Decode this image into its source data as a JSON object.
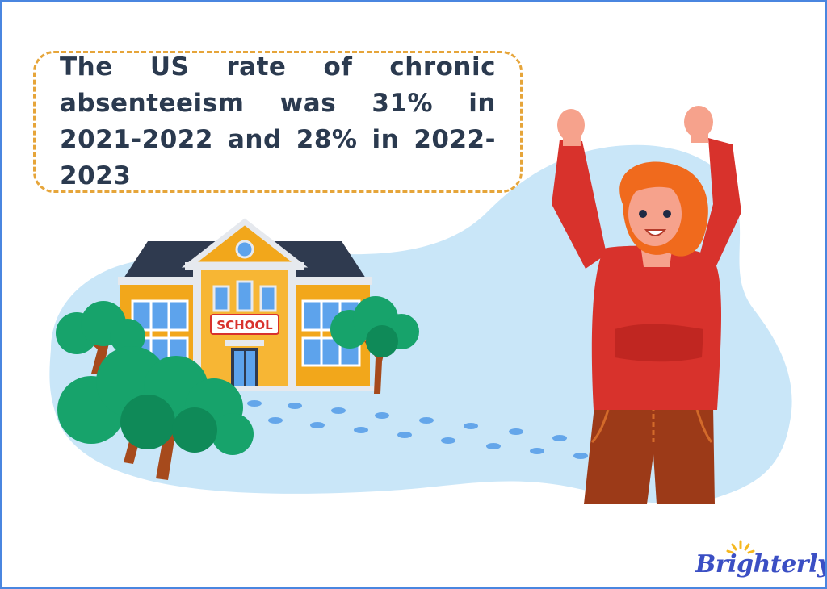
{
  "headline": "The US rate of chronic absenteeism was 31% in 2021-2022 and 28% in 2022-2023",
  "school_sign": "SCHOOL",
  "brand": {
    "name": "Brighterly",
    "color": "#3b4fc4",
    "accent": "#f5b81f"
  },
  "colors": {
    "frame_border": "#4a86e0",
    "bubble_border": "#e6a53a",
    "background_blob": "#c9e6f8",
    "school_wall": "#f2a71b",
    "school_roof": "#2f3a4f",
    "sweater": "#d8322c",
    "trousers": "#9c3a18",
    "hair": "#f06a1d",
    "tree": "#17a36b",
    "footprints": "#64a6ea"
  },
  "icons": [
    "school-building",
    "tree",
    "footprints",
    "cheering-girl",
    "sun-icon"
  ]
}
